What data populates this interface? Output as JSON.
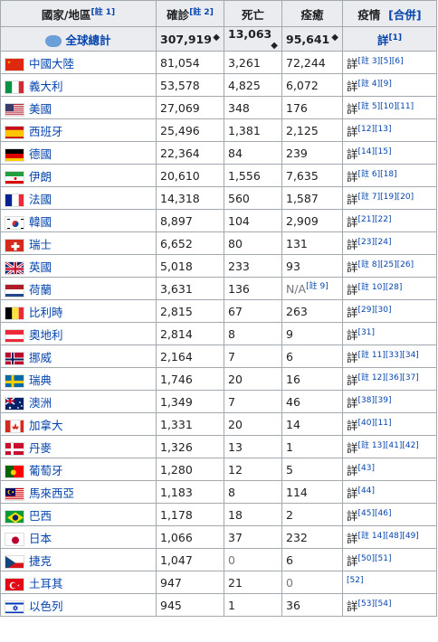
{
  "headers": {
    "country": "國家/地區",
    "country_note": "[註 1]",
    "confirmed": "確診",
    "confirmed_note": "[註 2]",
    "deaths": "死亡",
    "recovered": "痊癒",
    "situation": "疫情",
    "merge": "[合併]"
  },
  "total": {
    "label": "全球總計",
    "confirmed": "307,919",
    "deaths": "13,063",
    "recovered": "95,641",
    "detail": "詳",
    "detail_note": "[1]"
  },
  "rows": [
    {
      "name": "中國大陸",
      "confirmed": "81,054",
      "deaths": "3,261",
      "recovered": "72,244",
      "detail": "詳",
      "notes": "[註 3][5][6]",
      "flag": "china"
    },
    {
      "name": "義大利",
      "confirmed": "53,578",
      "deaths": "4,825",
      "recovered": "6,072",
      "detail": "詳",
      "notes": "[註 4][9]",
      "flag": "italy"
    },
    {
      "name": "美國",
      "confirmed": "27,069",
      "deaths": "348",
      "recovered": "176",
      "detail": "詳",
      "notes": "[註 5][10][11]",
      "flag": "usa"
    },
    {
      "name": "西班牙",
      "confirmed": "25,496",
      "deaths": "1,381",
      "recovered": "2,125",
      "detail": "詳",
      "notes": "[12][13]",
      "flag": "spain"
    },
    {
      "name": "德國",
      "confirmed": "22,364",
      "deaths": "84",
      "recovered": "239",
      "detail": "詳",
      "notes": "[14][15]",
      "flag": "germany"
    },
    {
      "name": "伊朗",
      "confirmed": "20,610",
      "deaths": "1,556",
      "recovered": "7,635",
      "detail": "詳",
      "notes": "[註 6][18]",
      "flag": "iran"
    },
    {
      "name": "法國",
      "confirmed": "14,318",
      "deaths": "560",
      "recovered": "1,587",
      "detail": "詳",
      "notes": "[註 7][19][20]",
      "flag": "france"
    },
    {
      "name": "韓國",
      "confirmed": "8,897",
      "deaths": "104",
      "recovered": "2,909",
      "detail": "詳",
      "notes": "[21][22]",
      "flag": "korea"
    },
    {
      "name": "瑞士",
      "confirmed": "6,652",
      "deaths": "80",
      "recovered": "131",
      "detail": "詳",
      "notes": "[23][24]",
      "flag": "swiss"
    },
    {
      "name": "英國",
      "confirmed": "5,018",
      "deaths": "233",
      "recovered": "93",
      "detail": "詳",
      "notes": "[註 8][25][26]",
      "flag": "uk"
    },
    {
      "name": "荷蘭",
      "confirmed": "3,631",
      "deaths": "136",
      "recovered": "N/A",
      "recovered_note": "[註 9]",
      "detail": "詳",
      "notes": "[註 10][28]",
      "flag": "netherlands"
    },
    {
      "name": "比利時",
      "confirmed": "2,815",
      "deaths": "67",
      "recovered": "263",
      "detail": "詳",
      "notes": "[29][30]",
      "flag": "belgium"
    },
    {
      "name": "奧地利",
      "confirmed": "2,814",
      "deaths": "8",
      "recovered": "9",
      "detail": "詳",
      "notes": "[31]",
      "flag": "austria"
    },
    {
      "name": "挪威",
      "confirmed": "2,164",
      "deaths": "7",
      "recovered": "6",
      "detail": "詳",
      "notes": "[註 11][33][34]",
      "flag": "norway"
    },
    {
      "name": "瑞典",
      "confirmed": "1,746",
      "deaths": "20",
      "recovered": "16",
      "detail": "詳",
      "notes": "[註 12][36][37]",
      "flag": "sweden"
    },
    {
      "name": "澳洲",
      "confirmed": "1,349",
      "deaths": "7",
      "recovered": "46",
      "detail": "詳",
      "notes": "[38][39]",
      "flag": "australia"
    },
    {
      "name": "加拿大",
      "confirmed": "1,331",
      "deaths": "20",
      "recovered": "14",
      "detail": "詳",
      "notes": "[40][11]",
      "flag": "canada"
    },
    {
      "name": "丹麥",
      "confirmed": "1,326",
      "deaths": "13",
      "recovered": "1",
      "detail": "詳",
      "notes": "[註 13][41][42]",
      "flag": "denmark"
    },
    {
      "name": "葡萄牙",
      "confirmed": "1,280",
      "deaths": "12",
      "recovered": "5",
      "detail": "詳",
      "notes": "[43]",
      "flag": "portugal"
    },
    {
      "name": "馬來西亞",
      "confirmed": "1,183",
      "deaths": "8",
      "recovered": "114",
      "detail": "詳",
      "notes": "[44]",
      "flag": "malaysia"
    },
    {
      "name": "巴西",
      "confirmed": "1,178",
      "deaths": "18",
      "recovered": "2",
      "detail": "詳",
      "notes": "[45][46]",
      "flag": "brazil"
    },
    {
      "name": "日本",
      "confirmed": "1,066",
      "deaths": "37",
      "recovered": "232",
      "detail": "詳",
      "notes": "[註 14][48][49]",
      "flag": "japan"
    },
    {
      "name": "捷克",
      "confirmed": "1,047",
      "deaths": "0",
      "recovered": "6",
      "detail": "詳",
      "notes": "[50][51]",
      "flag": "czech",
      "deaths_grey": true
    },
    {
      "name": "土耳其",
      "confirmed": "947",
      "deaths": "21",
      "recovered": "0",
      "detail": "",
      "notes": "[52]",
      "flag": "turkey",
      "recovered_grey": true
    },
    {
      "name": "以色列",
      "confirmed": "945",
      "deaths": "1",
      "recovered": "36",
      "detail": "詳",
      "notes": "[53][54]",
      "flag": "israel"
    }
  ]
}
